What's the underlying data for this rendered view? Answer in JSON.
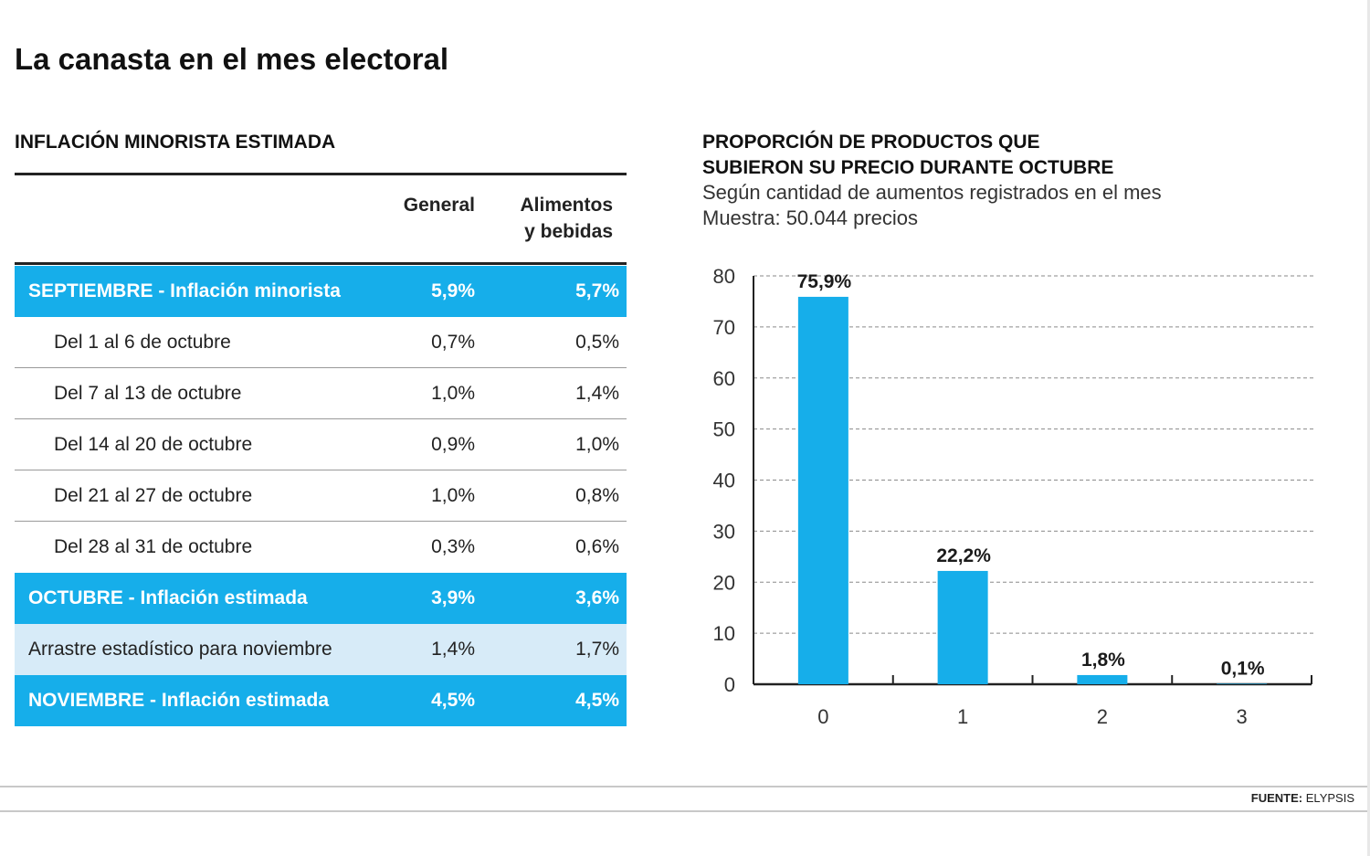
{
  "title": "La canasta en el mes electoral",
  "table": {
    "title": "INFLACIÓN MINORISTA ESTIMADA",
    "col_general": "General",
    "col_alimentos_1": "Alimentos",
    "col_alimentos_2": "y bebidas",
    "rows": [
      {
        "label": "SEPTIEMBRE - Inflación minorista",
        "general": "5,9%",
        "alimentos": "5,7%",
        "style": "highlight"
      },
      {
        "label": "Del 1 al 6 de octubre",
        "general": "0,7%",
        "alimentos": "0,5%",
        "style": "sub"
      },
      {
        "label": "Del 7 al 13 de octubre",
        "general": "1,0%",
        "alimentos": "1,4%",
        "style": "sub"
      },
      {
        "label": "Del 14 al 20 de octubre",
        "general": "0,9%",
        "alimentos": "1,0%",
        "style": "sub"
      },
      {
        "label": "Del 21 al 27 de octubre",
        "general": "1,0%",
        "alimentos": "0,8%",
        "style": "sub"
      },
      {
        "label": "Del 28 al 31 de octubre",
        "general": "0,3%",
        "alimentos": "0,6%",
        "style": "sub"
      },
      {
        "label": "OCTUBRE - Inflación estimada",
        "general": "3,9%",
        "alimentos": "3,6%",
        "style": "highlight"
      },
      {
        "label": "Arrastre estadístico para noviembre",
        "general": "1,4%",
        "alimentos": "1,7%",
        "style": "light"
      },
      {
        "label": "NOVIEMBRE - Inflación estimada",
        "general": "4,5%",
        "alimentos": "4,5%",
        "style": "highlight"
      }
    ]
  },
  "chart_title_1": "PROPORCIÓN DE PRODUCTOS QUE",
  "chart_title_2": "SUBIERON SU PRECIO DURANTE OCTUBRE",
  "chart_subtitle_1": "Según cantidad de aumentos registrados en el mes",
  "chart_subtitle_2": "Muestra: 50.044 precios",
  "chart_data": {
    "type": "bar",
    "title": "PROPORCIÓN DE PRODUCTOS QUE SUBIERON SU PRECIO DURANTE OCTUBRE",
    "subtitle": "Según cantidad de aumentos registrados en el mes",
    "categories": [
      "0",
      "1",
      "2",
      "3"
    ],
    "values": [
      75.9,
      22.2,
      1.8,
      0.1
    ],
    "data_labels": [
      "75,9%",
      "22,2%",
      "1,8%",
      "0,1%"
    ],
    "yticks": [
      0,
      10,
      20,
      30,
      40,
      50,
      60,
      70,
      80
    ],
    "ylim": [
      0,
      80
    ],
    "xlabel": "",
    "ylabel": "",
    "grid": true,
    "grid_style": "dashed",
    "bar_color": "#16aeea"
  },
  "colors": {
    "accent": "#16aeea",
    "light_row": "#d7ebf8"
  },
  "source_label": "FUENTE:",
  "source_value": "ELYPSIS"
}
